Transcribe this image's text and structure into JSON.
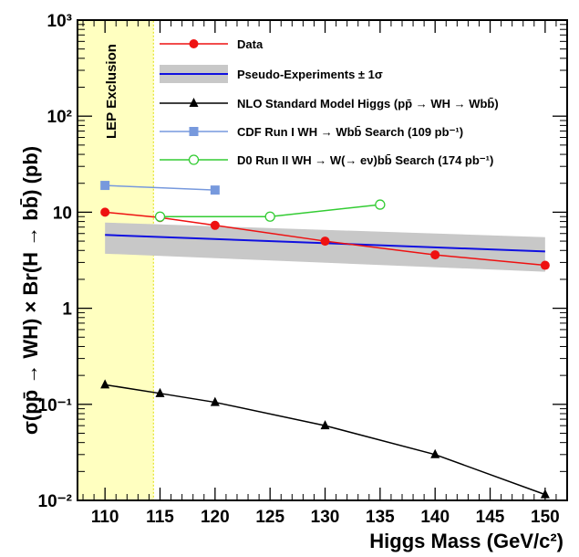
{
  "chart_data": {
    "type": "line",
    "xlabel": "Higgs Mass (GeV/c²)",
    "ylabel": "σ(pp̄ → WH) × Br(H → bb̄) (pb)",
    "yscale": "log",
    "xlim": [
      107.5,
      152
    ],
    "ylim": [
      0.01,
      1000
    ],
    "xticks": [
      110,
      115,
      120,
      125,
      130,
      135,
      140,
      145,
      150
    ],
    "xtick_labels": [
      "110",
      "115",
      "120",
      "125",
      "130",
      "135",
      "140",
      "145",
      "150"
    ],
    "ytick_labels": [
      "10⁻²",
      "10⁻¹",
      "1",
      "10",
      "10²",
      "10³"
    ],
    "shaded_region": {
      "label": "LEP Exclusion",
      "x_from": 107.5,
      "x_to": 114.4,
      "color": "#ffffc0"
    },
    "band": {
      "name": "Pseudo-Experiments ± 1σ",
      "x": [
        110,
        150
      ],
      "center": [
        5.8,
        3.9
      ],
      "low": [
        3.7,
        2.4
      ],
      "high": [
        7.8,
        5.5
      ],
      "band_color": "#c8c8c8",
      "line_color": "#1010e0"
    },
    "series": [
      {
        "name": "Data",
        "color": "#ee1111",
        "marker": "filled-circle",
        "x": [
          110,
          115,
          120,
          130,
          140,
          150
        ],
        "y": [
          10.0,
          8.8,
          7.3,
          5.0,
          3.6,
          2.8
        ]
      },
      {
        "name": "NLO Standard Model Higgs (pp̄ → WH → Wbb̄)",
        "color": "#000000",
        "marker": "filled-triangle",
        "x": [
          110,
          115,
          120,
          130,
          140,
          150
        ],
        "y": [
          0.16,
          0.13,
          0.105,
          0.06,
          0.03,
          0.0115
        ]
      },
      {
        "name": "CDF Run I WH → Wbb̄ Search (109 pb⁻¹)",
        "color": "#7799dd",
        "marker": "filled-square",
        "x": [
          110,
          120
        ],
        "y": [
          19.0,
          17.0
        ]
      },
      {
        "name": "D0 Run II WH → W(→ eν)bb̄ Search (174 pb⁻¹)",
        "color": "#33cc33",
        "marker": "open-circle",
        "x": [
          115,
          125,
          135
        ],
        "y": [
          9.0,
          9.0,
          12.0
        ]
      }
    ]
  }
}
